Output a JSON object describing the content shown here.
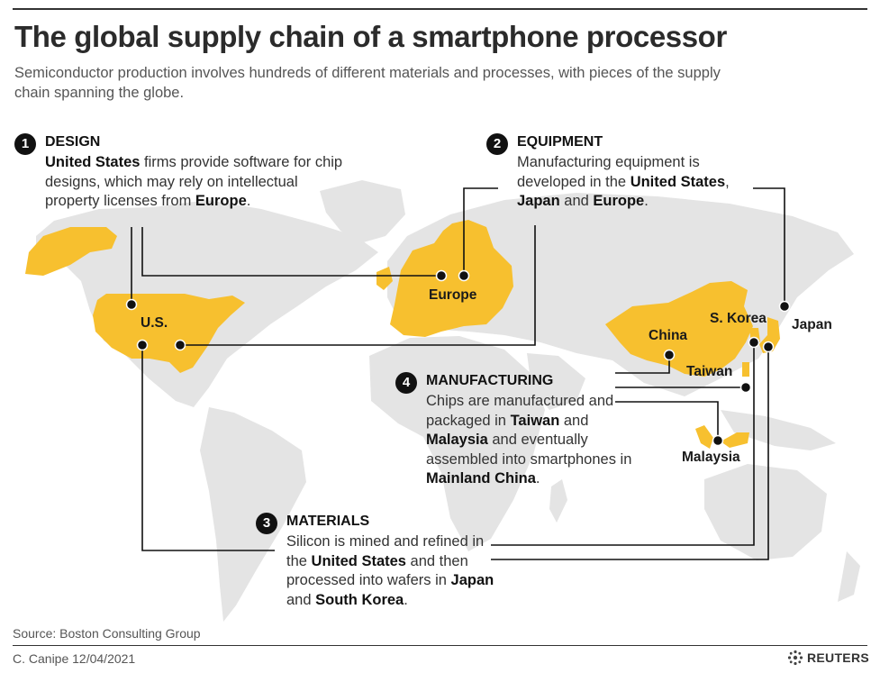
{
  "title": "The global supply chain of a smartphone processor",
  "subtitle": "Semiconductor production involves hundreds of different materials and processes, with pieces of the supply chain spanning the globe.",
  "colors": {
    "highlight": "#f7c02f",
    "land": "#e4e4e4",
    "line": "#111111",
    "dot": "#111111"
  },
  "callouts": {
    "design": {
      "number": "1",
      "heading": "DESIGN",
      "b1": "United States",
      "t1": " firms provide software for chip designs, which may rely on intellectual property licenses from ",
      "b2": "Europe",
      "t2": "."
    },
    "equipment": {
      "number": "2",
      "heading": "EQUIPMENT",
      "t1": "Manufacturing equipment is developed in the ",
      "b1": "United States",
      "t2": ", ",
      "b2": "Japan",
      "t3": " and ",
      "b3": "Europe",
      "t4": "."
    },
    "materials": {
      "number": "3",
      "heading": "MATERIALS",
      "t1": "Silicon is mined and refined in the ",
      "b1": "United States",
      "t2": " and then processed into wafers in ",
      "b2": "Japan",
      "t3": " and ",
      "b3": "South Korea",
      "t4": "."
    },
    "manufacturing": {
      "number": "4",
      "heading": "MANUFACTURING",
      "t1": "Chips are manufactured and packaged in ",
      "b1": "Taiwan",
      "t2": " and ",
      "b2": "Malaysia",
      "t3": " and eventually assembled into smartphones in ",
      "b3": "Mainland China",
      "t4": "."
    }
  },
  "map_labels": {
    "us": "U.S.",
    "europe": "Europe",
    "china": "China",
    "s_korea": "S. Korea",
    "japan": "Japan",
    "taiwan": "Taiwan",
    "malaysia": "Malaysia"
  },
  "footer": {
    "source": "Source: Boston Consulting Group",
    "credit": "C. Canipe 12/04/2021",
    "brand": "REUTERS"
  }
}
